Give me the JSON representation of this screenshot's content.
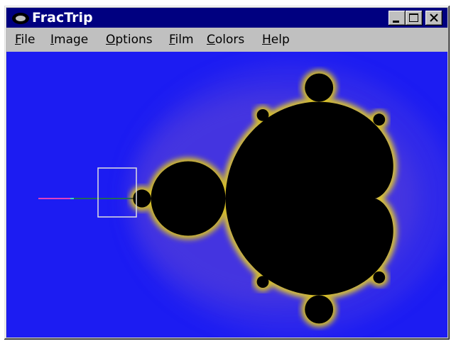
{
  "window": {
    "title": "FracTrip"
  },
  "menu": [
    "File",
    "Image",
    "Options",
    "Film",
    "Colors",
    "Help"
  ]
}
